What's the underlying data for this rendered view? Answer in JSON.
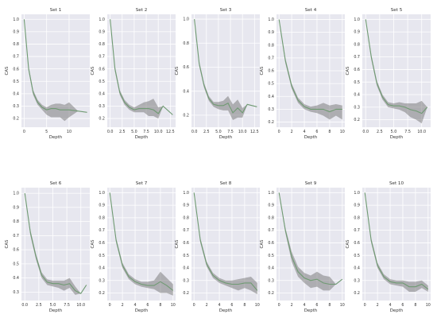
{
  "figure": {
    "colors": {
      "background": "#e7e7ef",
      "grid": "#ffffff",
      "line": "#6f9a72",
      "band": "#656565",
      "text": "#333333"
    }
  },
  "chart_data": [
    {
      "type": "line",
      "title": "Set 1",
      "xlabel": "Depth",
      "ylabel": "CAS",
      "xlim": [
        -0.6,
        14.6
      ],
      "ylim": [
        0.13,
        1.04
      ],
      "xticks": [
        0,
        5,
        10
      ],
      "xtick_labels": [
        "0",
        "5",
        "10"
      ],
      "yticks": [
        0.2,
        0.3,
        0.4,
        0.5,
        0.6,
        0.7,
        0.8,
        0.9,
        1.0
      ],
      "ytick_labels": [
        "0.2",
        "0.3",
        "0.4",
        "0.5",
        "0.6",
        "0.7",
        "0.8",
        "0.9",
        "1.0"
      ],
      "grid": true,
      "x": [
        0,
        1,
        2,
        3,
        4,
        5,
        6,
        7,
        8,
        9,
        10,
        12,
        14
      ],
      "y": [
        1.0,
        0.6,
        0.41,
        0.33,
        0.29,
        0.27,
        0.28,
        0.28,
        0.27,
        0.27,
        0.27,
        0.26,
        0.25
      ],
      "lower": [
        1.0,
        0.58,
        0.39,
        0.31,
        0.27,
        0.23,
        0.21,
        0.21,
        0.21,
        0.18,
        0.21,
        0.26,
        0.25
      ],
      "upper": [
        1.0,
        0.62,
        0.43,
        0.35,
        0.31,
        0.29,
        0.31,
        0.32,
        0.32,
        0.31,
        0.33,
        0.26,
        0.25
      ]
    },
    {
      "type": "line",
      "title": "Set 2",
      "xlabel": "Depth",
      "ylabel": "CAS",
      "xlim": [
        -0.6,
        13.6
      ],
      "ylim": [
        0.13,
        1.04
      ],
      "xticks": [
        0,
        2.5,
        5,
        7.5,
        10,
        12.5
      ],
      "xtick_labels": [
        "0.0",
        "2.5",
        "5.0",
        "7.5",
        "10.0",
        "12.5"
      ],
      "yticks": [
        0.2,
        0.3,
        0.4,
        0.5,
        0.6,
        0.7,
        0.8,
        0.9,
        1.0
      ],
      "ytick_labels": [
        "0.2",
        "0.3",
        "0.4",
        "0.5",
        "0.6",
        "0.7",
        "0.8",
        "0.9",
        "1.0"
      ],
      "grid": true,
      "x": [
        0,
        1,
        2,
        3,
        4,
        5,
        6,
        7,
        8,
        9,
        10,
        11,
        13
      ],
      "y": [
        1.0,
        0.6,
        0.41,
        0.33,
        0.29,
        0.27,
        0.28,
        0.28,
        0.28,
        0.27,
        0.24,
        0.3,
        0.23
      ],
      "lower": [
        1.0,
        0.58,
        0.39,
        0.31,
        0.27,
        0.25,
        0.25,
        0.25,
        0.22,
        0.22,
        0.2,
        0.3,
        0.23
      ],
      "upper": [
        1.0,
        0.62,
        0.43,
        0.35,
        0.31,
        0.29,
        0.31,
        0.33,
        0.34,
        0.36,
        0.29,
        0.3,
        0.23
      ]
    },
    {
      "type": "line",
      "title": "Set 3",
      "xlabel": "Depth",
      "ylabel": "CAS",
      "xlim": [
        -0.6,
        13.6
      ],
      "ylim": [
        0.1,
        1.04
      ],
      "xticks": [
        0,
        2.5,
        5,
        7.5,
        10,
        12.5
      ],
      "xtick_labels": [
        "0.0",
        "2.5",
        "5.0",
        "7.5",
        "10.0",
        "12.5"
      ],
      "yticks": [
        0.2,
        0.4,
        0.6,
        0.8,
        1.0
      ],
      "ytick_labels": [
        "0.2",
        "0.4",
        "0.6",
        "0.8",
        "1.0"
      ],
      "grid": true,
      "x": [
        0,
        1,
        2,
        3,
        4,
        5,
        6,
        7,
        8,
        9,
        10,
        11,
        13
      ],
      "y": [
        1.0,
        0.63,
        0.45,
        0.34,
        0.29,
        0.28,
        0.28,
        0.3,
        0.22,
        0.26,
        0.22,
        0.29,
        0.27
      ],
      "lower": [
        1.0,
        0.61,
        0.43,
        0.32,
        0.27,
        0.25,
        0.24,
        0.24,
        0.16,
        0.18,
        0.18,
        0.29,
        0.27
      ],
      "upper": [
        1.0,
        0.65,
        0.47,
        0.36,
        0.31,
        0.31,
        0.32,
        0.36,
        0.29,
        0.33,
        0.26,
        0.29,
        0.27
      ]
    },
    {
      "type": "line",
      "title": "Set 4",
      "xlabel": "Depth",
      "ylabel": "CAS",
      "xlim": [
        -0.4,
        10.4
      ],
      "ylim": [
        0.16,
        1.04
      ],
      "xticks": [
        0,
        2,
        4,
        6,
        8,
        10
      ],
      "xtick_labels": [
        "0",
        "2",
        "4",
        "6",
        "8",
        "10"
      ],
      "yticks": [
        0.2,
        0.3,
        0.4,
        0.5,
        0.6,
        0.7,
        0.8,
        0.9,
        1.0
      ],
      "ytick_labels": [
        "0.2",
        "0.3",
        "0.4",
        "0.5",
        "0.6",
        "0.7",
        "0.8",
        "0.9",
        "1.0"
      ],
      "grid": true,
      "x": [
        0,
        1,
        2,
        3,
        4,
        5,
        6,
        7,
        8,
        9,
        10
      ],
      "y": [
        1.0,
        0.68,
        0.48,
        0.37,
        0.32,
        0.3,
        0.3,
        0.3,
        0.28,
        0.3,
        0.3
      ],
      "lower": [
        1.0,
        0.66,
        0.46,
        0.35,
        0.3,
        0.28,
        0.27,
        0.25,
        0.22,
        0.25,
        0.22
      ],
      "upper": [
        1.0,
        0.7,
        0.5,
        0.39,
        0.34,
        0.32,
        0.33,
        0.35,
        0.33,
        0.34,
        0.33
      ]
    },
    {
      "type": "line",
      "title": "Set 5",
      "xlabel": "Depth",
      "ylabel": "CAS",
      "xlim": [
        -0.6,
        11.6
      ],
      "ylim": [
        0.14,
        1.04
      ],
      "xticks": [
        0,
        2.5,
        5,
        7.5,
        10
      ],
      "xtick_labels": [
        "0.0",
        "2.5",
        "5.0",
        "7.5",
        "10.0"
      ],
      "yticks": [
        0.2,
        0.3,
        0.4,
        0.5,
        0.6,
        0.7,
        0.8,
        0.9,
        1.0
      ],
      "ytick_labels": [
        "0.2",
        "0.3",
        "0.4",
        "0.5",
        "0.6",
        "0.7",
        "0.8",
        "0.9",
        "1.0"
      ],
      "grid": true,
      "x": [
        0,
        1,
        2,
        3,
        4,
        5,
        6,
        7,
        8,
        9,
        10,
        11
      ],
      "y": [
        1.0,
        0.7,
        0.49,
        0.38,
        0.32,
        0.31,
        0.31,
        0.3,
        0.28,
        0.27,
        0.25,
        0.3
      ],
      "lower": [
        1.0,
        0.68,
        0.47,
        0.36,
        0.3,
        0.29,
        0.28,
        0.26,
        0.22,
        0.2,
        0.17,
        0.3
      ],
      "upper": [
        1.0,
        0.72,
        0.51,
        0.4,
        0.34,
        0.33,
        0.34,
        0.33,
        0.33,
        0.33,
        0.35,
        0.3
      ]
    },
    {
      "type": "line",
      "title": "Set 6",
      "xlabel": "Depth",
      "ylabel": "CAS",
      "xlim": [
        -0.6,
        11.6
      ],
      "ylim": [
        0.24,
        1.04
      ],
      "xticks": [
        0,
        2.5,
        5,
        7.5,
        10
      ],
      "xtick_labels": [
        "0.0",
        "2.5",
        "5.0",
        "7.5",
        "10.0"
      ],
      "yticks": [
        0.3,
        0.4,
        0.5,
        0.6,
        0.7,
        0.8,
        0.9,
        1.0
      ],
      "ytick_labels": [
        "0.3",
        "0.4",
        "0.5",
        "0.6",
        "0.7",
        "0.8",
        "0.9",
        "1.0"
      ],
      "grid": true,
      "x": [
        0,
        1,
        2,
        3,
        4,
        5,
        6,
        7,
        8,
        9,
        10,
        11
      ],
      "y": [
        1.0,
        0.72,
        0.55,
        0.42,
        0.37,
        0.36,
        0.36,
        0.35,
        0.36,
        0.31,
        0.29,
        0.35
      ],
      "lower": [
        1.0,
        0.7,
        0.53,
        0.4,
        0.35,
        0.34,
        0.33,
        0.31,
        0.33,
        0.28,
        0.29,
        0.35
      ],
      "upper": [
        1.0,
        0.74,
        0.57,
        0.44,
        0.39,
        0.38,
        0.38,
        0.38,
        0.4,
        0.34,
        0.29,
        0.35
      ]
    },
    {
      "type": "line",
      "title": "Set 7",
      "xlabel": "Depth",
      "ylabel": "CAS",
      "xlim": [
        -0.4,
        10.4
      ],
      "ylim": [
        0.14,
        1.04
      ],
      "xticks": [
        0,
        2,
        4,
        6,
        8,
        10
      ],
      "xtick_labels": [
        "0",
        "2",
        "4",
        "6",
        "8",
        "10"
      ],
      "yticks": [
        0.2,
        0.3,
        0.4,
        0.5,
        0.6,
        0.7,
        0.8,
        0.9,
        1.0
      ],
      "ytick_labels": [
        "0.2",
        "0.3",
        "0.4",
        "0.5",
        "0.6",
        "0.7",
        "0.8",
        "0.9",
        "1.0"
      ],
      "grid": true,
      "x": [
        0,
        1,
        2,
        3,
        4,
        5,
        6,
        7,
        8,
        9,
        10
      ],
      "y": [
        1.0,
        0.62,
        0.42,
        0.33,
        0.29,
        0.27,
        0.26,
        0.26,
        0.29,
        0.26,
        0.22
      ],
      "lower": [
        1.0,
        0.6,
        0.4,
        0.31,
        0.27,
        0.25,
        0.24,
        0.23,
        0.2,
        0.2,
        0.18
      ],
      "upper": [
        1.0,
        0.64,
        0.44,
        0.35,
        0.31,
        0.29,
        0.29,
        0.3,
        0.37,
        0.32,
        0.27
      ]
    },
    {
      "type": "line",
      "title": "Set 8",
      "xlabel": "Depth",
      "ylabel": "CAS",
      "xlim": [
        -0.4,
        10.4
      ],
      "ylim": [
        0.14,
        1.04
      ],
      "xticks": [
        0,
        2,
        4,
        6,
        8,
        10
      ],
      "xtick_labels": [
        "0",
        "2",
        "4",
        "6",
        "8",
        "10"
      ],
      "yticks": [
        0.2,
        0.3,
        0.4,
        0.5,
        0.6,
        0.7,
        0.8,
        0.9,
        1.0
      ],
      "ytick_labels": [
        "0.2",
        "0.3",
        "0.4",
        "0.5",
        "0.6",
        "0.7",
        "0.8",
        "0.9",
        "1.0"
      ],
      "grid": true,
      "x": [
        0,
        1,
        2,
        3,
        4,
        5,
        6,
        7,
        8,
        9,
        10
      ],
      "y": [
        1.0,
        0.62,
        0.43,
        0.34,
        0.3,
        0.28,
        0.27,
        0.27,
        0.28,
        0.28,
        0.22
      ],
      "lower": [
        1.0,
        0.6,
        0.41,
        0.32,
        0.28,
        0.26,
        0.24,
        0.22,
        0.24,
        0.22,
        0.19
      ],
      "upper": [
        1.0,
        0.64,
        0.45,
        0.36,
        0.32,
        0.3,
        0.3,
        0.31,
        0.32,
        0.33,
        0.28
      ]
    },
    {
      "type": "line",
      "title": "Set 9",
      "xlabel": "Depth",
      "ylabel": "CAS",
      "xlim": [
        -0.4,
        10.4
      ],
      "ylim": [
        0.14,
        1.04
      ],
      "xticks": [
        0,
        2,
        4,
        6,
        8,
        10
      ],
      "xtick_labels": [
        "0",
        "2",
        "4",
        "6",
        "8",
        "10"
      ],
      "yticks": [
        0.2,
        0.3,
        0.4,
        0.5,
        0.6,
        0.7,
        0.8,
        0.9,
        1.0
      ],
      "ytick_labels": [
        "0.2",
        "0.3",
        "0.4",
        "0.5",
        "0.6",
        "0.7",
        "0.8",
        "0.9",
        "1.0"
      ],
      "grid": true,
      "x": [
        0,
        1,
        2,
        3,
        4,
        5,
        6,
        7,
        8,
        9,
        10
      ],
      "y": [
        1.0,
        0.7,
        0.49,
        0.37,
        0.32,
        0.3,
        0.31,
        0.28,
        0.27,
        0.27,
        0.31
      ],
      "lower": [
        1.0,
        0.68,
        0.45,
        0.33,
        0.28,
        0.24,
        0.25,
        0.22,
        0.22,
        0.27,
        0.31
      ],
      "upper": [
        1.0,
        0.72,
        0.53,
        0.41,
        0.36,
        0.34,
        0.37,
        0.34,
        0.33,
        0.27,
        0.31
      ]
    },
    {
      "type": "line",
      "title": "Set 10",
      "xlabel": "Depth",
      "ylabel": "CAS",
      "xlim": [
        -0.4,
        10.4
      ],
      "ylim": [
        0.14,
        1.04
      ],
      "xticks": [
        0,
        2,
        4,
        6,
        8,
        10
      ],
      "xtick_labels": [
        "0",
        "2",
        "4",
        "6",
        "8",
        "10"
      ],
      "yticks": [
        0.2,
        0.3,
        0.4,
        0.5,
        0.6,
        0.7,
        0.8,
        0.9,
        1.0
      ],
      "ytick_labels": [
        "0.2",
        "0.3",
        "0.4",
        "0.5",
        "0.6",
        "0.7",
        "0.8",
        "0.9",
        "1.0"
      ],
      "grid": true,
      "x": [
        0,
        1,
        2,
        3,
        4,
        5,
        6,
        7,
        8,
        9,
        10
      ],
      "y": [
        1.0,
        0.62,
        0.42,
        0.33,
        0.29,
        0.28,
        0.28,
        0.25,
        0.25,
        0.27,
        0.23
      ],
      "lower": [
        1.0,
        0.6,
        0.4,
        0.31,
        0.27,
        0.26,
        0.25,
        0.21,
        0.21,
        0.24,
        0.21
      ],
      "upper": [
        1.0,
        0.64,
        0.44,
        0.35,
        0.31,
        0.3,
        0.3,
        0.29,
        0.29,
        0.3,
        0.26
      ]
    }
  ]
}
